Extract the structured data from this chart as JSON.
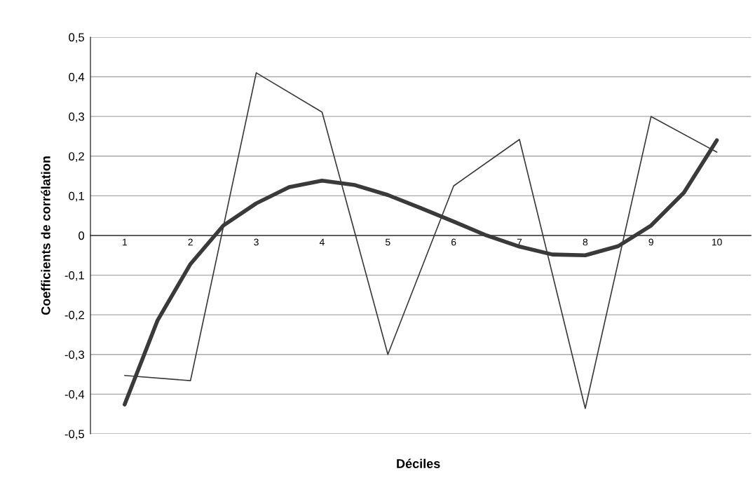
{
  "chart_data": {
    "type": "line",
    "xlabel": "Déciles",
    "ylabel": "Coefficients de corrélation",
    "x": [
      1,
      2,
      3,
      4,
      5,
      6,
      7,
      8,
      9,
      10
    ],
    "series": [
      {
        "color": "#3a3a3a",
        "values": [
          -0.353,
          -0.366,
          0.41,
          0.311,
          -0.3,
          0.125,
          0.242,
          -0.436,
          0.3,
          0.21
        ]
      },
      {
        "color": "#3a3a3a",
        "x": [
          1,
          1.5,
          2,
          2.5,
          3,
          3.5,
          4,
          4.5,
          5,
          5.5,
          6,
          6.5,
          7,
          7.5,
          8,
          8.5,
          9,
          9.5,
          10
        ],
        "values": [
          -0.426,
          -0.214,
          -0.072,
          0.025,
          0.081,
          0.122,
          0.138,
          0.127,
          0.102,
          0.069,
          0.035,
          0.0,
          -0.028,
          -0.048,
          -0.05,
          -0.027,
          0.025,
          0.108,
          0.24
        ]
      }
    ],
    "xlim": [
      0.48,
      10.52
    ],
    "xticks": [
      1,
      2,
      3,
      4,
      5,
      6,
      7,
      8,
      9,
      10
    ],
    "ylim": [
      -0.5,
      0.5
    ],
    "yticks": [
      {
        "value": -0.5,
        "label": "-0,5"
      },
      {
        "value": -0.4,
        "label": "-0,4"
      },
      {
        "value": -0.3,
        "label": "-0,3"
      },
      {
        "value": -0.2,
        "label": "-0,2"
      },
      {
        "value": -0.1,
        "label": "-0,1"
      },
      {
        "value": 0,
        "label": "0"
      },
      {
        "value": 0.1,
        "label": "0,1"
      },
      {
        "value": 0.2,
        "label": "0,2"
      },
      {
        "value": 0.3,
        "label": "0,3"
      },
      {
        "value": 0.4,
        "label": "0,4"
      },
      {
        "value": 0.5,
        "label": "0,5"
      }
    ],
    "grid": "y",
    "marker": "none",
    "line_style": "solid"
  }
}
